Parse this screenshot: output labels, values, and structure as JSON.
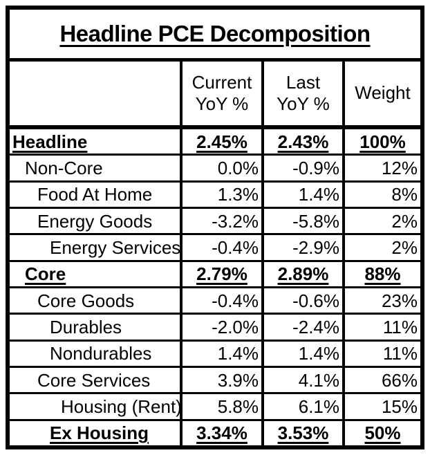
{
  "title": "Headline PCE Decomposition",
  "header": {
    "label": "",
    "current": "Current YoY %",
    "last": "Last YoY %",
    "weight": "Weight"
  },
  "rows": [
    {
      "label": "Headline",
      "current": "2.45%",
      "last": "2.43%",
      "weight": "100%"
    },
    {
      "label": "Non-Core",
      "current": "0.0%",
      "last": "-0.9%",
      "weight": "12%"
    },
    {
      "label": "Food At Home",
      "current": "1.3%",
      "last": "1.4%",
      "weight": "8%"
    },
    {
      "label": "Energy Goods",
      "current": "-3.2%",
      "last": "-5.8%",
      "weight": "2%"
    },
    {
      "label": "Energy Services",
      "current": "-0.4%",
      "last": "-2.9%",
      "weight": "2%"
    },
    {
      "label": "Core",
      "current": "2.79%",
      "last": "2.89%",
      "weight": "88%"
    },
    {
      "label": "Core Goods",
      "current": "-0.4%",
      "last": "-0.6%",
      "weight": "23%"
    },
    {
      "label": "Durables",
      "current": "-2.0%",
      "last": "-2.4%",
      "weight": "11%"
    },
    {
      "label": "Nondurables",
      "current": "1.4%",
      "last": "1.4%",
      "weight": "11%"
    },
    {
      "label": "Core Services",
      "current": "3.9%",
      "last": "4.1%",
      "weight": "66%"
    },
    {
      "label": "Housing (Rent)",
      "current": "5.8%",
      "last": "6.1%",
      "weight": "15%"
    },
    {
      "label": "Ex Housing",
      "current": "3.34%",
      "last": "3.53%",
      "weight": "50%"
    }
  ],
  "colors": {
    "border": "#000000",
    "text": "#000000",
    "background": "#ffffff"
  },
  "chart_data": {
    "type": "table",
    "title": "Headline PCE Decomposition",
    "columns": [
      "",
      "Current YoY %",
      "Last YoY %",
      "Weight"
    ],
    "rows": [
      {
        "label": "Headline",
        "indent": 0,
        "emphasis": true,
        "current_yoy_pct": 2.45,
        "last_yoy_pct": 2.43,
        "weight_pct": 100
      },
      {
        "label": "Non-Core",
        "indent": 1,
        "emphasis": false,
        "current_yoy_pct": 0.0,
        "last_yoy_pct": -0.9,
        "weight_pct": 12
      },
      {
        "label": "Food At Home",
        "indent": 2,
        "emphasis": false,
        "current_yoy_pct": 1.3,
        "last_yoy_pct": 1.4,
        "weight_pct": 8
      },
      {
        "label": "Energy Goods",
        "indent": 2,
        "emphasis": false,
        "current_yoy_pct": -3.2,
        "last_yoy_pct": -5.8,
        "weight_pct": 2
      },
      {
        "label": "Energy Services",
        "indent": 3,
        "emphasis": false,
        "current_yoy_pct": -0.4,
        "last_yoy_pct": -2.9,
        "weight_pct": 2
      },
      {
        "label": "Core",
        "indent": 1,
        "emphasis": true,
        "current_yoy_pct": 2.79,
        "last_yoy_pct": 2.89,
        "weight_pct": 88
      },
      {
        "label": "Core Goods",
        "indent": 2,
        "emphasis": false,
        "current_yoy_pct": -0.4,
        "last_yoy_pct": -0.6,
        "weight_pct": 23
      },
      {
        "label": "Durables",
        "indent": 3,
        "emphasis": false,
        "current_yoy_pct": -2.0,
        "last_yoy_pct": -2.4,
        "weight_pct": 11
      },
      {
        "label": "Nondurables",
        "indent": 3,
        "emphasis": false,
        "current_yoy_pct": 1.4,
        "last_yoy_pct": 1.4,
        "weight_pct": 11
      },
      {
        "label": "Core Services",
        "indent": 2,
        "emphasis": false,
        "current_yoy_pct": 3.9,
        "last_yoy_pct": 4.1,
        "weight_pct": 66
      },
      {
        "label": "Housing (Rent)",
        "indent": 4,
        "emphasis": false,
        "current_yoy_pct": 5.8,
        "last_yoy_pct": 6.1,
        "weight_pct": 15
      },
      {
        "label": "Ex Housing",
        "indent": 3,
        "emphasis": true,
        "current_yoy_pct": 3.34,
        "last_yoy_pct": 3.53,
        "weight_pct": 50
      }
    ]
  }
}
